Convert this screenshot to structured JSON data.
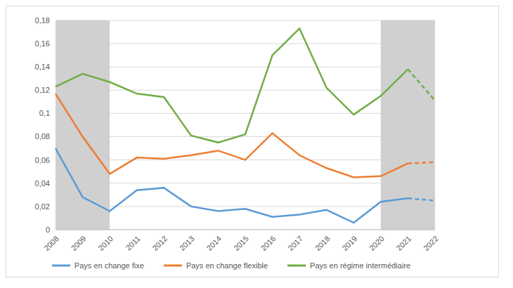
{
  "chart_data": {
    "type": "line",
    "categories": [
      "2008",
      "2009",
      "2010",
      "2011",
      "2012",
      "2013",
      "2014",
      "2015",
      "2016",
      "2017",
      "2018",
      "2019",
      "2020",
      "2021",
      "2022"
    ],
    "series": [
      {
        "name": "Pays en change fixe",
        "color": "#5b9bd5",
        "values": [
          0.07,
          0.028,
          0.016,
          0.034,
          0.036,
          0.02,
          0.016,
          0.018,
          0.011,
          0.013,
          0.017,
          0.006,
          0.024,
          0.027,
          0.025
        ]
      },
      {
        "name": "Pays en change flexible",
        "color": "#ed7d31",
        "values": [
          0.117,
          0.08,
          0.048,
          0.062,
          0.061,
          0.064,
          0.068,
          0.06,
          0.083,
          0.064,
          0.053,
          0.045,
          0.046,
          0.057,
          0.058
        ]
      },
      {
        "name": "Pays en régime intermédiaire",
        "color": "#70ad47",
        "values": [
          0.123,
          0.134,
          0.127,
          0.117,
          0.114,
          0.081,
          0.075,
          0.082,
          0.15,
          0.173,
          0.122,
          0.099,
          0.115,
          0.138,
          0.111
        ]
      }
    ],
    "ylim": [
      0,
      0.18
    ],
    "yticks": [
      0,
      {
        "value": 0.02,
        "label": "0,02"
      },
      {
        "value": 0.04,
        "label": "0,04"
      },
      {
        "value": 0.06,
        "label": "0,06"
      },
      {
        "value": 0.08,
        "label": "0,08"
      },
      {
        "value": 0.1,
        "label": "0,1"
      },
      {
        "value": 0.12,
        "label": "0,12"
      },
      {
        "value": 0.14,
        "label": "0,14"
      },
      {
        "value": 0.16,
        "label": "0,16"
      },
      {
        "value": 0.18,
        "label": "0,18"
      }
    ],
    "grid": true,
    "legend": "bottom",
    "shaded_periods": [
      {
        "from": "2008",
        "to": "2010"
      },
      {
        "from": "2020",
        "to": "2022"
      }
    ],
    "dashed_from": "2021"
  }
}
